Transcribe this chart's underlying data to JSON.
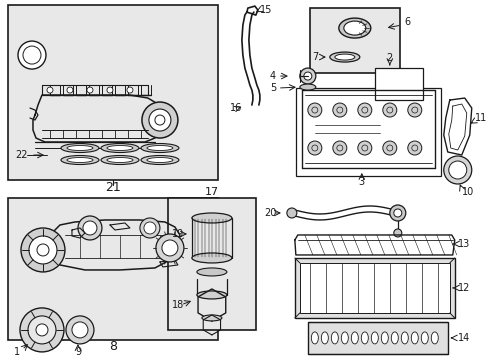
{
  "bg_color": "#ffffff",
  "lc": "#1a1a1a",
  "box_fill": "#e8e8e8",
  "white": "#ffffff"
}
